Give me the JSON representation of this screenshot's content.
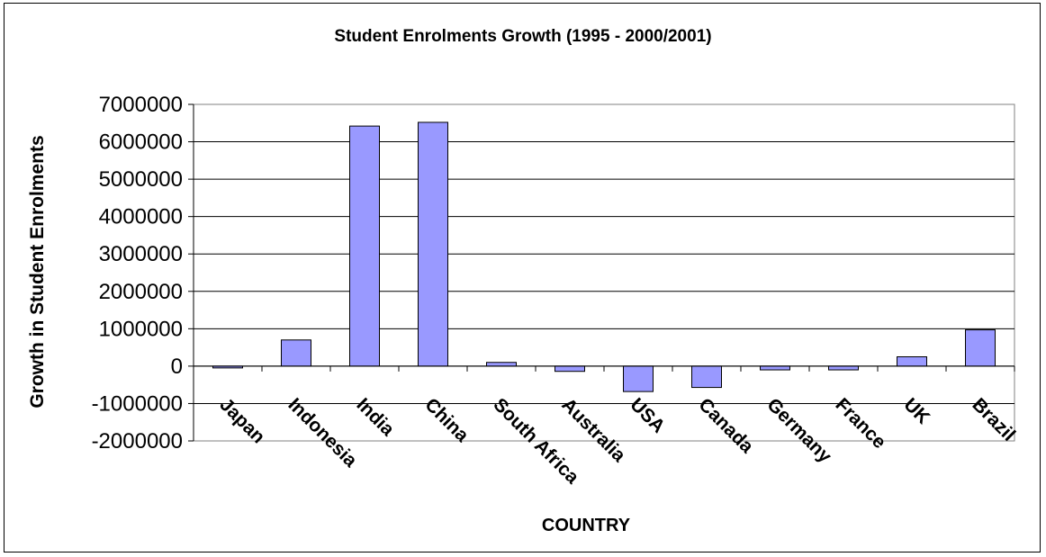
{
  "chart_data": {
    "type": "bar",
    "title": "Student Enrolments Growth (1995 - 2000/2001)",
    "xlabel": "COUNTRY",
    "ylabel": "Growth in Student Enrolments",
    "categories": [
      "Japan",
      "Indonesia",
      "India",
      "China",
      "South Africa",
      "Australia",
      "USA",
      "Canada",
      "Germany",
      "France",
      "UK",
      "Brazil"
    ],
    "values": [
      -40000,
      700000,
      6420000,
      6520000,
      100000,
      -140000,
      -680000,
      -570000,
      -100000,
      -100000,
      250000,
      970000
    ],
    "ylim": [
      -2000000,
      7000000
    ],
    "yticks": [
      "7000000",
      "6000000",
      "5000000",
      "4000000",
      "3000000",
      "2000000",
      "1000000",
      "0",
      "-1000000",
      "-2000000"
    ],
    "grid": true,
    "bar_color": "#9999FF",
    "legend": "none"
  }
}
